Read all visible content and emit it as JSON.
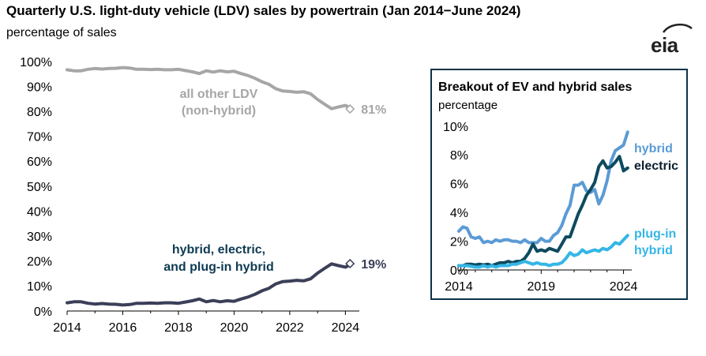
{
  "header": {
    "title": "Quarterly U.S. light-duty vehicle (LDV) sales by powertrain (Jan 2014−June 2024)",
    "subtitle": "percentage of sales",
    "logo": "eia"
  },
  "colors": {
    "other_ldv": "#a6a6a6",
    "electrified": "#3b3f58",
    "hybrid": "#5b9bd5",
    "electric": "#0e4a5f",
    "plugin": "#35b6e6",
    "inset_border": "#0c3348",
    "axis": "#000000"
  },
  "chart_data": [
    {
      "type": "line",
      "title": "Quarterly U.S. light-duty vehicle (LDV) sales by powertrain (Jan 2014−June 2024)",
      "ylabel": "percentage of sales",
      "xlim": [
        2014,
        2024.5
      ],
      "ylim": [
        0,
        100
      ],
      "x_ticks": [
        2014,
        2016,
        2018,
        2020,
        2022,
        2024
      ],
      "x_tick_labels": [
        "2014",
        "2016",
        "2018",
        "2020",
        "2022",
        "2024"
      ],
      "y_ticks": [
        0,
        10,
        20,
        30,
        40,
        50,
        60,
        70,
        80,
        90,
        100
      ],
      "y_tick_labels": [
        "0%",
        "10%",
        "20%",
        "30%",
        "40%",
        "50%",
        "60%",
        "70%",
        "80%",
        "90%",
        "100%"
      ],
      "grid": false,
      "x": [
        2014,
        2014.25,
        2014.5,
        2014.75,
        2015,
        2015.25,
        2015.5,
        2015.75,
        2016,
        2016.25,
        2016.5,
        2016.75,
        2017,
        2017.25,
        2017.5,
        2017.75,
        2018,
        2018.25,
        2018.5,
        2018.75,
        2019,
        2019.25,
        2019.5,
        2019.75,
        2020,
        2020.25,
        2020.5,
        2020.75,
        2021,
        2021.25,
        2021.5,
        2021.75,
        2022,
        2022.25,
        2022.5,
        2022.75,
        2023,
        2023.25,
        2023.5,
        2023.75,
        2024,
        2024.25
      ],
      "series": [
        {
          "name": "all other LDV (non-hybrid)",
          "label_lines": [
            "all other LDV",
            "(non-hybrid)"
          ],
          "end_label": "81%",
          "values": [
            96.7,
            96.3,
            96.3,
            96.9,
            97.2,
            97.0,
            97.2,
            97.3,
            97.6,
            97.4,
            96.9,
            96.9,
            96.8,
            96.9,
            96.7,
            96.7,
            96.9,
            96.4,
            95.9,
            95.2,
            96.3,
            95.8,
            96.3,
            95.9,
            96.1,
            95.2,
            94.4,
            93.3,
            91.9,
            90.9,
            89.1,
            88.2,
            88.0,
            87.7,
            87.9,
            87.1,
            84.8,
            82.9,
            81.1,
            81.8,
            82.4,
            81.0
          ]
        },
        {
          "name": "hybrid, electric, and plug-in hybrid",
          "label_lines": [
            "hybrid, electric,",
            "and plug-in hybrid"
          ],
          "end_label": "19%",
          "values": [
            3.3,
            3.7,
            3.7,
            3.1,
            2.8,
            3.0,
            2.8,
            2.7,
            2.4,
            2.6,
            3.1,
            3.1,
            3.2,
            3.1,
            3.3,
            3.3,
            3.1,
            3.6,
            4.1,
            4.8,
            3.7,
            4.2,
            3.7,
            4.1,
            3.9,
            4.8,
            5.6,
            6.7,
            8.1,
            9.1,
            10.9,
            11.8,
            12.0,
            12.3,
            12.1,
            12.9,
            15.2,
            17.1,
            18.9,
            18.2,
            17.6,
            19.0
          ]
        }
      ]
    },
    {
      "type": "line",
      "title": "Breakout of EV and hybrid sales",
      "ylabel": "percentage",
      "xlim": [
        2014,
        2024.5
      ],
      "ylim": [
        0,
        10
      ],
      "x_ticks": [
        2014,
        2019,
        2024
      ],
      "x_tick_labels": [
        "2014",
        "2019",
        "2024"
      ],
      "y_ticks": [
        0,
        2,
        4,
        6,
        8,
        10
      ],
      "y_tick_labels": [
        "0%",
        "2%",
        "4%",
        "6%",
        "8%",
        "10%"
      ],
      "grid": false,
      "x": [
        2014,
        2014.25,
        2014.5,
        2014.75,
        2015,
        2015.25,
        2015.5,
        2015.75,
        2016,
        2016.25,
        2016.5,
        2016.75,
        2017,
        2017.25,
        2017.5,
        2017.75,
        2018,
        2018.25,
        2018.5,
        2018.75,
        2019,
        2019.25,
        2019.5,
        2019.75,
        2020,
        2020.25,
        2020.5,
        2020.75,
        2021,
        2021.25,
        2021.5,
        2021.75,
        2022,
        2022.25,
        2022.5,
        2022.75,
        2023,
        2023.25,
        2023.5,
        2023.75,
        2024,
        2024.25
      ],
      "series": [
        {
          "name": "hybrid",
          "label_lines": [
            "hybrid"
          ],
          "values": [
            2.7,
            3.0,
            2.9,
            2.3,
            2.2,
            2.3,
            1.9,
            2.0,
            1.9,
            2.1,
            2.0,
            2.1,
            2.1,
            2.0,
            2.0,
            1.9,
            2.1,
            1.9,
            1.9,
            1.9,
            2.2,
            2.0,
            2.0,
            2.4,
            2.6,
            3.1,
            3.9,
            4.5,
            5.9,
            5.9,
            6.1,
            5.5,
            5.4,
            5.6,
            4.6,
            5.2,
            6.2,
            7.6,
            8.3,
            8.5,
            8.7,
            9.6
          ]
        },
        {
          "name": "electric",
          "label_lines": [
            "electric"
          ],
          "values": [
            0.3,
            0.3,
            0.4,
            0.4,
            0.35,
            0.4,
            0.35,
            0.4,
            0.3,
            0.4,
            0.5,
            0.5,
            0.6,
            0.5,
            0.6,
            0.6,
            0.8,
            1.2,
            1.8,
            1.3,
            1.4,
            1.3,
            1.5,
            1.4,
            1.3,
            1.8,
            2.3,
            2.3,
            3.1,
            3.9,
            4.5,
            5.2,
            5.6,
            6.1,
            7.2,
            7.6,
            7.1,
            7.2,
            7.5,
            7.9,
            6.9,
            7.1
          ]
        },
        {
          "name": "plug-in hybrid",
          "label_lines": [
            "plug-in",
            "hybrid"
          ],
          "values": [
            0.3,
            0.3,
            0.3,
            0.25,
            0.2,
            0.2,
            0.3,
            0.2,
            0.3,
            0.2,
            0.3,
            0.3,
            0.3,
            0.4,
            0.4,
            0.5,
            0.6,
            0.5,
            0.4,
            0.5,
            0.4,
            0.4,
            0.3,
            0.4,
            0.4,
            0.5,
            0.8,
            1.2,
            1.0,
            1.1,
            1.4,
            1.2,
            1.3,
            1.4,
            1.3,
            1.5,
            1.4,
            1.6,
            1.9,
            1.8,
            2.1,
            2.4
          ]
        }
      ]
    }
  ]
}
